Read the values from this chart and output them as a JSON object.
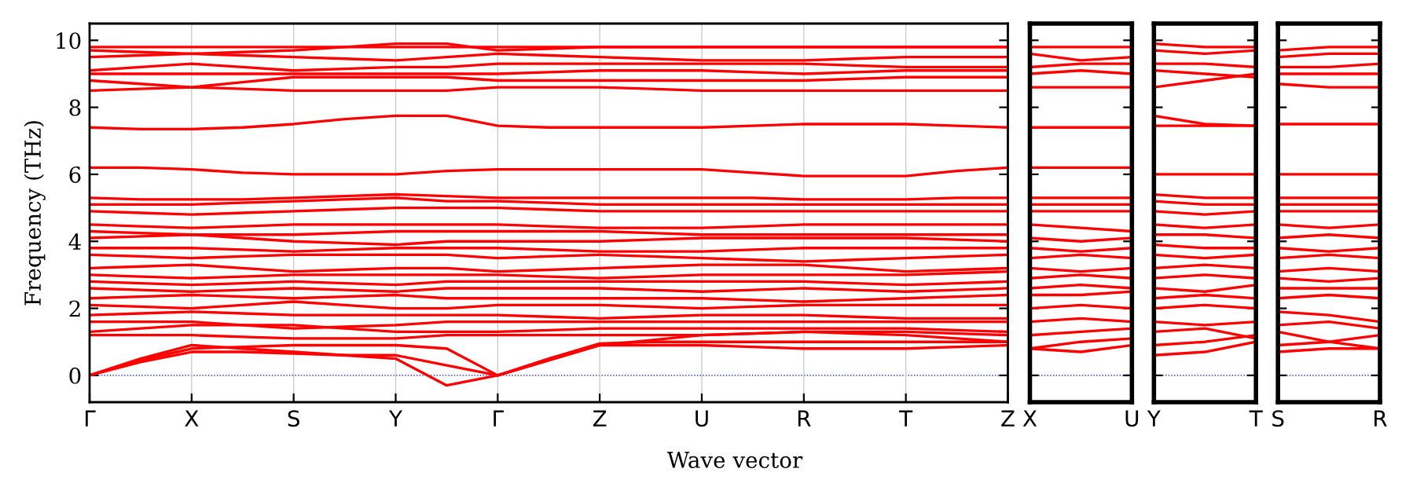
{
  "chart_data": [
    {
      "type": "line",
      "ylabel": "Frequency (THz)",
      "xlabel": "Wave vector",
      "grid": "x",
      "line_style": "solid",
      "categories": [
        "Γ",
        null,
        "X",
        null,
        "S",
        null,
        "Y",
        null,
        "Γ",
        null,
        "Z",
        null,
        "U",
        null,
        "R",
        null,
        "T",
        null,
        "Z"
      ],
      "ylim": [
        -0.8,
        10.5
      ],
      "yticks": [
        0,
        2,
        4,
        6,
        8,
        10
      ],
      "ref_lines": [
        {
          "axis": "y",
          "value": 0,
          "color": "#0000ff",
          "line_style": "dotted"
        }
      ],
      "series": [
        {
          "color": "#ff0000",
          "values": [
            9.8,
            9.8,
            9.8,
            9.8,
            9.8,
            9.8,
            9.8,
            9.8,
            9.8,
            9.8,
            9.8,
            9.8,
            9.8,
            9.8,
            9.8,
            9.8,
            9.8,
            9.8,
            9.8
          ]
        },
        {
          "color": "#ff0000",
          "values": [
            9.7,
            9.65,
            9.6,
            9.65,
            9.7,
            9.8,
            9.9,
            9.9,
            9.7,
            9.75,
            9.8,
            9.8,
            9.8,
            9.8,
            9.8,
            9.8,
            9.8,
            9.8,
            9.8
          ]
        },
        {
          "color": "#ff0000",
          "values": [
            9.5,
            9.55,
            9.6,
            9.55,
            9.5,
            9.45,
            9.4,
            9.5,
            9.6,
            9.55,
            9.5,
            9.45,
            9.4,
            9.4,
            9.4,
            9.45,
            9.5,
            9.5,
            9.5
          ]
        },
        {
          "color": "#ff0000",
          "values": [
            9.1,
            9.2,
            9.3,
            9.2,
            9.1,
            9.15,
            9.2,
            9.2,
            9.3,
            9.3,
            9.3,
            9.3,
            9.3,
            9.3,
            9.3,
            9.25,
            9.2,
            9.2,
            9.2
          ]
        },
        {
          "color": "#ff0000",
          "values": [
            9.0,
            9.0,
            9.0,
            9.0,
            9.0,
            9.0,
            9.0,
            9.0,
            9.0,
            9.05,
            9.1,
            9.1,
            9.1,
            9.05,
            9.0,
            9.05,
            9.1,
            9.1,
            9.1
          ]
        },
        {
          "color": "#ff0000",
          "values": [
            8.8,
            8.7,
            8.6,
            8.75,
            8.9,
            8.9,
            8.9,
            8.9,
            8.8,
            8.8,
            8.8,
            8.8,
            8.8,
            8.8,
            8.8,
            8.85,
            8.9,
            8.9,
            8.9
          ]
        },
        {
          "color": "#ff0000",
          "values": [
            8.5,
            8.55,
            8.6,
            8.55,
            8.5,
            8.5,
            8.5,
            8.5,
            8.6,
            8.6,
            8.6,
            8.55,
            8.5,
            8.5,
            8.5,
            8.5,
            8.5,
            8.5,
            8.5
          ]
        },
        {
          "color": "#ff0000",
          "values": [
            7.4,
            7.35,
            7.35,
            7.4,
            7.5,
            7.65,
            7.75,
            7.75,
            7.45,
            7.4,
            7.4,
            7.4,
            7.4,
            7.45,
            7.5,
            7.5,
            7.5,
            7.45,
            7.4
          ]
        },
        {
          "color": "#ff0000",
          "values": [
            6.2,
            6.2,
            6.15,
            6.05,
            6.0,
            6.0,
            6.0,
            6.1,
            6.15,
            6.15,
            6.15,
            6.15,
            6.15,
            6.05,
            5.95,
            5.95,
            5.95,
            6.1,
            6.2
          ]
        },
        {
          "color": "#ff0000",
          "values": [
            5.3,
            5.25,
            5.25,
            5.25,
            5.3,
            5.35,
            5.4,
            5.35,
            5.3,
            5.3,
            5.3,
            5.3,
            5.3,
            5.3,
            5.25,
            5.25,
            5.25,
            5.3,
            5.3
          ]
        },
        {
          "color": "#ff0000",
          "values": [
            5.1,
            5.1,
            5.1,
            5.15,
            5.2,
            5.25,
            5.3,
            5.2,
            5.2,
            5.15,
            5.1,
            5.1,
            5.1,
            5.1,
            5.1,
            5.1,
            5.1,
            5.1,
            5.1
          ]
        },
        {
          "color": "#ff0000",
          "values": [
            4.9,
            4.85,
            4.8,
            4.85,
            4.9,
            4.95,
            5.0,
            5.0,
            5.0,
            4.95,
            4.9,
            4.9,
            4.9,
            4.9,
            4.9,
            4.9,
            4.9,
            4.9,
            4.9
          ]
        },
        {
          "color": "#ff0000",
          "values": [
            4.5,
            4.45,
            4.4,
            4.45,
            4.5,
            4.5,
            4.5,
            4.5,
            4.5,
            4.45,
            4.4,
            4.4,
            4.4,
            4.45,
            4.5,
            4.5,
            4.5,
            4.5,
            4.5
          ]
        },
        {
          "color": "#ff0000",
          "values": [
            4.3,
            4.25,
            4.2,
            4.2,
            4.2,
            4.25,
            4.3,
            4.3,
            4.3,
            4.3,
            4.3,
            4.25,
            4.2,
            4.2,
            4.2,
            4.2,
            4.2,
            4.2,
            4.2
          ]
        },
        {
          "color": "#ff0000",
          "values": [
            4.1,
            4.15,
            4.2,
            4.1,
            4.0,
            3.95,
            3.9,
            4.0,
            4.0,
            4.0,
            4.0,
            4.05,
            4.1,
            4.1,
            4.1,
            4.1,
            4.1,
            4.05,
            4.0
          ]
        },
        {
          "color": "#ff0000",
          "values": [
            3.8,
            3.8,
            3.8,
            3.75,
            3.7,
            3.75,
            3.8,
            3.8,
            3.8,
            3.75,
            3.7,
            3.7,
            3.7,
            3.75,
            3.8,
            3.8,
            3.8,
            3.8,
            3.8
          ]
        },
        {
          "color": "#ff0000",
          "values": [
            3.6,
            3.55,
            3.5,
            3.55,
            3.6,
            3.6,
            3.6,
            3.6,
            3.5,
            3.55,
            3.6,
            3.55,
            3.5,
            3.45,
            3.4,
            3.45,
            3.5,
            3.55,
            3.6
          ]
        },
        {
          "color": "#ff0000",
          "values": [
            3.2,
            3.25,
            3.3,
            3.2,
            3.1,
            3.15,
            3.2,
            3.2,
            3.1,
            3.15,
            3.2,
            3.25,
            3.3,
            3.3,
            3.3,
            3.2,
            3.1,
            3.15,
            3.2
          ]
        },
        {
          "color": "#ff0000",
          "values": [
            3.0,
            2.95,
            2.9,
            2.95,
            3.0,
            3.0,
            3.0,
            3.0,
            3.0,
            2.95,
            2.9,
            2.95,
            3.0,
            3.0,
            3.0,
            3.0,
            3.0,
            3.05,
            3.1
          ]
        },
        {
          "color": "#ff0000",
          "values": [
            2.8,
            2.75,
            2.7,
            2.75,
            2.8,
            2.75,
            2.7,
            2.8,
            2.8,
            2.8,
            2.8,
            2.8,
            2.8,
            2.8,
            2.8,
            2.75,
            2.7,
            2.75,
            2.8
          ]
        },
        {
          "color": "#ff0000",
          "values": [
            2.6,
            2.55,
            2.5,
            2.55,
            2.6,
            2.55,
            2.5,
            2.6,
            2.6,
            2.6,
            2.6,
            2.55,
            2.5,
            2.55,
            2.6,
            2.55,
            2.5,
            2.55,
            2.6
          ]
        },
        {
          "color": "#ff0000",
          "values": [
            2.3,
            2.35,
            2.4,
            2.35,
            2.3,
            2.35,
            2.4,
            2.3,
            2.3,
            2.3,
            2.3,
            2.3,
            2.3,
            2.25,
            2.2,
            2.25,
            2.3,
            2.35,
            2.4
          ]
        },
        {
          "color": "#ff0000",
          "values": [
            2.1,
            2.05,
            2.0,
            2.1,
            2.2,
            2.1,
            2.0,
            2.0,
            2.1,
            2.1,
            2.1,
            2.05,
            2.0,
            2.05,
            2.1,
            2.1,
            2.1,
            2.1,
            2.1
          ]
        },
        {
          "color": "#ff0000",
          "values": [
            1.8,
            1.85,
            1.9,
            1.85,
            1.8,
            1.8,
            1.8,
            1.8,
            1.8,
            1.75,
            1.7,
            1.75,
            1.8,
            1.8,
            1.8,
            1.75,
            1.7,
            1.7,
            1.7
          ]
        },
        {
          "color": "#ff0000",
          "values": [
            1.6,
            1.6,
            1.6,
            1.5,
            1.4,
            1.45,
            1.5,
            1.6,
            1.6,
            1.6,
            1.6,
            1.6,
            1.6,
            1.6,
            1.6,
            1.6,
            1.6,
            1.6,
            1.6
          ]
        },
        {
          "color": "#ff0000",
          "values": [
            1.3,
            1.4,
            1.5,
            1.5,
            1.5,
            1.4,
            1.3,
            1.3,
            1.3,
            1.35,
            1.4,
            1.4,
            1.4,
            1.4,
            1.4,
            1.4,
            1.4,
            1.35,
            1.3
          ]
        },
        {
          "color": "#ff0000",
          "values": [
            1.2,
            1.2,
            1.2,
            1.15,
            1.1,
            1.1,
            1.1,
            1.2,
            1.2,
            1.2,
            1.2,
            1.2,
            1.2,
            1.25,
            1.3,
            1.3,
            1.3,
            1.25,
            1.2
          ]
        },
        {
          "color": "#ff0000",
          "values": [
            0.0,
            0.45,
            0.8,
            0.85,
            0.9,
            0.9,
            0.9,
            0.8,
            0.0,
            0.5,
            0.95,
            1.0,
            1.0,
            1.0,
            1.0,
            1.0,
            1.0,
            1.0,
            1.0
          ]
        },
        {
          "color": "#ff0000",
          "values": [
            0.0,
            0.4,
            0.7,
            0.7,
            0.65,
            0.6,
            0.6,
            0.3,
            0.0,
            0.45,
            0.9,
            0.9,
            0.9,
            0.85,
            0.8,
            0.8,
            0.8,
            0.85,
            0.9
          ]
        },
        {
          "color": "#ff0000",
          "values": [
            0.0,
            0.5,
            0.9,
            0.8,
            0.7,
            0.6,
            0.5,
            -0.3,
            0.0,
            0.45,
            0.9,
            1.05,
            1.2,
            1.25,
            1.3,
            1.25,
            1.2,
            1.1,
            1.0
          ]
        }
      ]
    },
    {
      "type": "line",
      "tick_labels": "x",
      "line_style": "solid",
      "categories": [
        "X",
        null,
        "U"
      ],
      "ylim": [
        -0.8,
        10.5
      ],
      "yticks": [
        0,
        2,
        4,
        6,
        8,
        10
      ],
      "ref_lines": [
        {
          "axis": "y",
          "value": 0,
          "color": "#0000ff",
          "line_style": "dotted"
        }
      ],
      "series": [
        {
          "color": "#ff0000",
          "values": [
            9.8,
            9.8,
            9.8
          ]
        },
        {
          "color": "#ff0000",
          "values": [
            9.6,
            9.4,
            9.5
          ]
        },
        {
          "color": "#ff0000",
          "values": [
            9.2,
            9.3,
            9.3
          ]
        },
        {
          "color": "#ff0000",
          "values": [
            9.0,
            9.1,
            9.0
          ]
        },
        {
          "color": "#ff0000",
          "values": [
            8.6,
            8.6,
            8.6
          ]
        },
        {
          "color": "#ff0000",
          "values": [
            7.4,
            7.4,
            7.4
          ]
        },
        {
          "color": "#ff0000",
          "values": [
            6.2,
            6.2,
            6.2
          ]
        },
        {
          "color": "#ff0000",
          "values": [
            5.3,
            5.3,
            5.3
          ]
        },
        {
          "color": "#ff0000",
          "values": [
            5.1,
            5.1,
            5.1
          ]
        },
        {
          "color": "#ff0000",
          "values": [
            4.9,
            4.9,
            4.9
          ]
        },
        {
          "color": "#ff0000",
          "values": [
            4.5,
            4.4,
            4.3
          ]
        },
        {
          "color": "#ff0000",
          "values": [
            4.1,
            4.0,
            4.1
          ]
        },
        {
          "color": "#ff0000",
          "values": [
            3.8,
            3.7,
            3.8
          ]
        },
        {
          "color": "#ff0000",
          "values": [
            3.5,
            3.6,
            3.5
          ]
        },
        {
          "color": "#ff0000",
          "values": [
            3.2,
            3.1,
            3.2
          ]
        },
        {
          "color": "#ff0000",
          "values": [
            2.9,
            3.0,
            2.9
          ]
        },
        {
          "color": "#ff0000",
          "values": [
            2.6,
            2.7,
            2.6
          ]
        },
        {
          "color": "#ff0000",
          "values": [
            2.4,
            2.4,
            2.5
          ]
        },
        {
          "color": "#ff0000",
          "values": [
            2.0,
            2.1,
            2.0
          ]
        },
        {
          "color": "#ff0000",
          "values": [
            1.6,
            1.7,
            1.6
          ]
        },
        {
          "color": "#ff0000",
          "values": [
            1.2,
            1.3,
            1.4
          ]
        },
        {
          "color": "#ff0000",
          "values": [
            0.8,
            1.0,
            1.1
          ]
        },
        {
          "color": "#ff0000",
          "values": [
            0.8,
            0.7,
            0.9
          ]
        }
      ]
    },
    {
      "type": "line",
      "tick_labels": "x",
      "line_style": "solid",
      "categories": [
        "Y",
        null,
        "T"
      ],
      "ylim": [
        -0.8,
        10.5
      ],
      "yticks": [
        0,
        2,
        4,
        6,
        8,
        10
      ],
      "ref_lines": [
        {
          "axis": "y",
          "value": 0,
          "color": "#0000ff",
          "line_style": "dotted"
        }
      ],
      "series": [
        {
          "color": "#ff0000",
          "values": [
            9.9,
            9.8,
            9.8
          ]
        },
        {
          "color": "#ff0000",
          "values": [
            9.7,
            9.6,
            9.7
          ]
        },
        {
          "color": "#ff0000",
          "values": [
            9.3,
            9.3,
            9.2
          ]
        },
        {
          "color": "#ff0000",
          "values": [
            9.1,
            9.0,
            8.9
          ]
        },
        {
          "color": "#ff0000",
          "values": [
            8.6,
            8.8,
            9.0
          ]
        },
        {
          "color": "#ff0000",
          "values": [
            7.75,
            7.5,
            7.45
          ]
        },
        {
          "color": "#ff0000",
          "values": [
            7.45,
            7.45,
            7.45
          ]
        },
        {
          "color": "#ff0000",
          "values": [
            6.0,
            6.0,
            6.0
          ]
        },
        {
          "color": "#ff0000",
          "values": [
            5.4,
            5.3,
            5.3
          ]
        },
        {
          "color": "#ff0000",
          "values": [
            5.2,
            5.1,
            5.1
          ]
        },
        {
          "color": "#ff0000",
          "values": [
            4.9,
            4.8,
            4.9
          ]
        },
        {
          "color": "#ff0000",
          "values": [
            4.5,
            4.4,
            4.5
          ]
        },
        {
          "color": "#ff0000",
          "values": [
            4.2,
            4.2,
            4.1
          ]
        },
        {
          "color": "#ff0000",
          "values": [
            3.9,
            3.8,
            3.8
          ]
        },
        {
          "color": "#ff0000",
          "values": [
            3.6,
            3.5,
            3.6
          ]
        },
        {
          "color": "#ff0000",
          "values": [
            3.2,
            3.3,
            3.2
          ]
        },
        {
          "color": "#ff0000",
          "values": [
            2.9,
            3.0,
            2.9
          ]
        },
        {
          "color": "#ff0000",
          "values": [
            2.6,
            2.5,
            2.7
          ]
        },
        {
          "color": "#ff0000",
          "values": [
            2.3,
            2.4,
            2.3
          ]
        },
        {
          "color": "#ff0000",
          "values": [
            2.0,
            2.1,
            2.0
          ]
        },
        {
          "color": "#ff0000",
          "values": [
            1.6,
            1.5,
            1.6
          ]
        },
        {
          "color": "#ff0000",
          "values": [
            1.3,
            1.4,
            1.1
          ]
        },
        {
          "color": "#ff0000",
          "values": [
            0.9,
            1.0,
            1.2
          ]
        },
        {
          "color": "#ff0000",
          "values": [
            0.6,
            0.7,
            1.0
          ]
        }
      ]
    },
    {
      "type": "line",
      "tick_labels": "x",
      "line_style": "solid",
      "categories": [
        "S",
        null,
        "R"
      ],
      "ylim": [
        -0.8,
        10.5
      ],
      "yticks": [
        0,
        2,
        4,
        6,
        8,
        10
      ],
      "ref_lines": [
        {
          "axis": "y",
          "value": 0,
          "color": "#0000ff",
          "line_style": "dotted"
        }
      ],
      "series": [
        {
          "color": "#ff0000",
          "values": [
            9.7,
            9.8,
            9.8
          ]
        },
        {
          "color": "#ff0000",
          "values": [
            9.5,
            9.6,
            9.6
          ]
        },
        {
          "color": "#ff0000",
          "values": [
            9.2,
            9.2,
            9.3
          ]
        },
        {
          "color": "#ff0000",
          "values": [
            9.0,
            9.0,
            9.0
          ]
        },
        {
          "color": "#ff0000",
          "values": [
            8.7,
            8.6,
            8.6
          ]
        },
        {
          "color": "#ff0000",
          "values": [
            7.5,
            7.5,
            7.5
          ]
        },
        {
          "color": "#ff0000",
          "values": [
            6.0,
            6.0,
            6.0
          ]
        },
        {
          "color": "#ff0000",
          "values": [
            5.3,
            5.3,
            5.3
          ]
        },
        {
          "color": "#ff0000",
          "values": [
            5.1,
            5.1,
            5.1
          ]
        },
        {
          "color": "#ff0000",
          "values": [
            4.9,
            4.9,
            4.9
          ]
        },
        {
          "color": "#ff0000",
          "values": [
            4.5,
            4.4,
            4.5
          ]
        },
        {
          "color": "#ff0000",
          "values": [
            4.1,
            4.2,
            4.1
          ]
        },
        {
          "color": "#ff0000",
          "values": [
            3.8,
            3.7,
            3.8
          ]
        },
        {
          "color": "#ff0000",
          "values": [
            3.5,
            3.6,
            3.5
          ]
        },
        {
          "color": "#ff0000",
          "values": [
            3.1,
            3.2,
            3.1
          ]
        },
        {
          "color": "#ff0000",
          "values": [
            2.9,
            2.8,
            2.9
          ]
        },
        {
          "color": "#ff0000",
          "values": [
            2.6,
            2.6,
            2.6
          ]
        },
        {
          "color": "#ff0000",
          "values": [
            2.3,
            2.4,
            2.3
          ]
        },
        {
          "color": "#ff0000",
          "values": [
            1.9,
            1.8,
            1.6
          ]
        },
        {
          "color": "#ff0000",
          "values": [
            1.5,
            1.6,
            1.4
          ]
        },
        {
          "color": "#ff0000",
          "values": [
            1.3,
            1.0,
            1.2
          ]
        },
        {
          "color": "#ff0000",
          "values": [
            0.9,
            1.0,
            0.8
          ]
        },
        {
          "color": "#ff0000",
          "values": [
            0.7,
            0.8,
            0.8
          ]
        }
      ]
    }
  ]
}
